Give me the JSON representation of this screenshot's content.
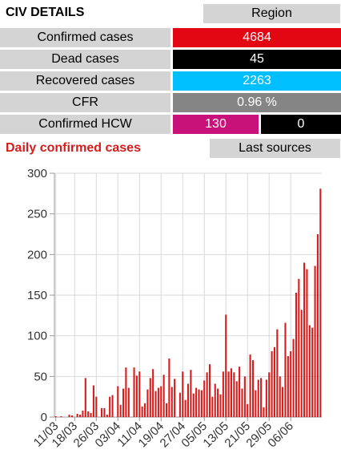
{
  "header": {
    "title": "CIV DETAILS",
    "region_button": "Region"
  },
  "stats": {
    "confirmed": {
      "label": "Confirmed cases",
      "value": "4684",
      "color": "#e30613"
    },
    "dead": {
      "label": "Dead cases",
      "value": "45",
      "color": "#000000"
    },
    "recovered": {
      "label": "Recovered cases",
      "value": "2263",
      "color": "#00bfff"
    },
    "cfr": {
      "label": "CFR",
      "value": "0.96 %",
      "color": "#858585"
    },
    "hcw": {
      "label": "Confirmed HCW",
      "value_a": "130",
      "value_b": "0",
      "color_a": "#c8127a",
      "color_b": "#000000"
    }
  },
  "daily": {
    "title": "Daily confirmed cases",
    "sources_button": "Last sources"
  },
  "chart_data": {
    "type": "bar",
    "color": "#d81b1b",
    "ylim": [
      0,
      300
    ],
    "yticks": [
      0,
      50,
      100,
      150,
      200,
      250,
      300
    ],
    "grid": true,
    "xticklabels": [
      "11/03",
      "18/03",
      "26/03",
      "03/04",
      "11/04",
      "19/04",
      "27/04",
      "05/05",
      "13/05",
      "21/05",
      "29/05",
      "06/06"
    ],
    "xtick_day_index": [
      0,
      7,
      15,
      23,
      31,
      39,
      47,
      55,
      63,
      71,
      79,
      87
    ],
    "values": [
      1,
      0,
      1,
      0,
      0,
      3,
      2,
      0,
      4,
      3,
      8,
      48,
      7,
      5,
      39,
      25,
      0,
      11,
      11,
      3,
      25,
      27,
      0,
      38,
      15,
      35,
      61,
      36,
      0,
      61,
      51,
      56,
      13,
      17,
      34,
      48,
      59,
      32,
      36,
      38,
      52,
      17,
      72,
      37,
      47,
      0,
      30,
      56,
      21,
      41,
      58,
      29,
      36,
      34,
      33,
      45,
      55,
      65,
      25,
      41,
      35,
      28,
      56,
      126,
      56,
      60,
      55,
      44,
      62,
      35,
      50,
      16,
      77,
      70,
      33,
      46,
      48,
      12,
      46,
      55,
      81,
      86,
      108,
      50,
      37,
      116,
      75,
      81,
      96,
      153,
      170,
      132,
      190,
      182,
      113,
      110,
      186,
      225,
      281
    ]
  }
}
